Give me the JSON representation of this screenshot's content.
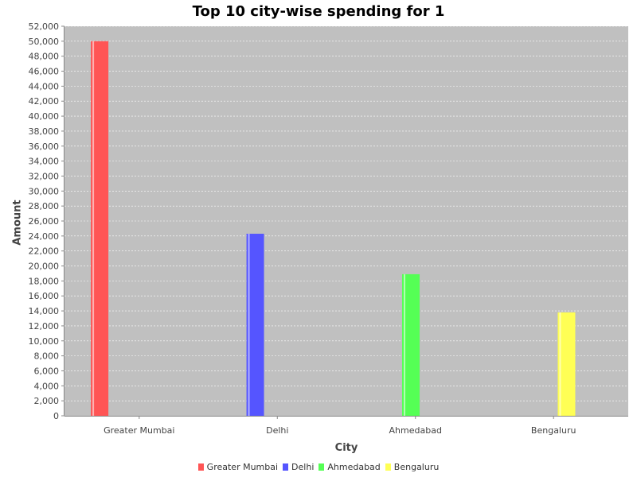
{
  "chart_data": {
    "type": "bar",
    "title": "Top 10 city-wise spending for 1",
    "xlabel": "City",
    "ylabel": "Amount",
    "categories": [
      "Greater Mumbai",
      "Delhi",
      "Ahmedabad",
      "Bengaluru"
    ],
    "series": [
      {
        "name": "Greater Mumbai",
        "color": "#ff5555",
        "values": [
          50000,
          0,
          0,
          0
        ]
      },
      {
        "name": "Delhi",
        "color": "#5555ff",
        "values": [
          0,
          24300,
          0,
          0
        ]
      },
      {
        "name": "Ahmedabad",
        "color": "#55ff55",
        "values": [
          0,
          0,
          18900,
          0
        ]
      },
      {
        "name": "Bengaluru",
        "color": "#ffff55",
        "values": [
          0,
          0,
          0,
          13800
        ]
      }
    ],
    "ylim": [
      0,
      52000
    ],
    "yticks": [
      "0",
      "2,000",
      "4,000",
      "6,000",
      "8,000",
      "10,000",
      "12,000",
      "14,000",
      "16,000",
      "18,000",
      "20,000",
      "22,000",
      "24,000",
      "26,000",
      "28,000",
      "30,000",
      "32,000",
      "34,000",
      "36,000",
      "38,000",
      "40,000",
      "42,000",
      "44,000",
      "46,000",
      "48,000",
      "50,000",
      "52,000"
    ],
    "grid": true,
    "plot_background": "#c0c0c0",
    "legend_position": "bottom"
  }
}
